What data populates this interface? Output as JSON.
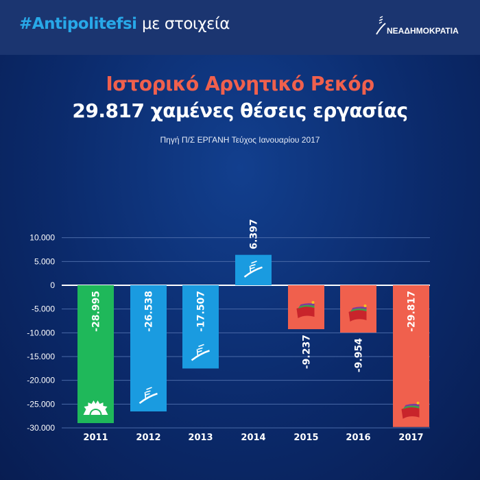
{
  "header": {
    "hashtag": "#Antipolitefsi",
    "hashtag_rest": "με στοιχεία",
    "logo_text": "ΝΕΑΔΗΜΟΚΡΑΤΙΑ"
  },
  "chart_data": {
    "type": "bar",
    "title": "Ιστορικό Αρνητικό Ρεκόρ",
    "subtitle": "29.817 χαμένες θέσεις εργασίας",
    "source": "Πηγή Π/Σ ΕΡΓΑΝΗ Τεύχος Ιανουαρίου 2017",
    "categories": [
      "2011",
      "2012",
      "2013",
      "2014",
      "2015",
      "2016",
      "2017"
    ],
    "values": [
      -28995,
      -26538,
      -17507,
      6397,
      -9237,
      -9954,
      -29817
    ],
    "value_labels": [
      "-28.995",
      "-26.538",
      "-17.507",
      "6.397",
      "-9.237",
      "-9.954",
      "-29.817"
    ],
    "bar_colors": [
      "#1fb85a",
      "#1a9be0",
      "#1a9be0",
      "#1a9be0",
      "#f0604d",
      "#f0604d",
      "#f0604d"
    ],
    "bar_icons": [
      "sun-icon",
      "nd-logo-icon",
      "nd-logo-icon",
      "nd-logo-icon",
      "syriza-flag-icon",
      "syriza-flag-icon",
      "syriza-flag-icon"
    ],
    "ylim": [
      -30000,
      10000
    ],
    "yticks": [
      10000,
      5000,
      0,
      -5000,
      -10000,
      -15000,
      -20000,
      -25000,
      -30000
    ],
    "ytick_labels": [
      "10.000",
      "5.000",
      "0",
      "-5.000",
      "-10.000",
      "-15.000",
      "-20.000",
      "-25.000",
      "-30.000"
    ],
    "grid": true,
    "xlabel": "",
    "ylabel": ""
  },
  "colors": {
    "title_accent": "#f0604d",
    "hashtag": "#28a8e8",
    "header_band": "#1b3570"
  }
}
